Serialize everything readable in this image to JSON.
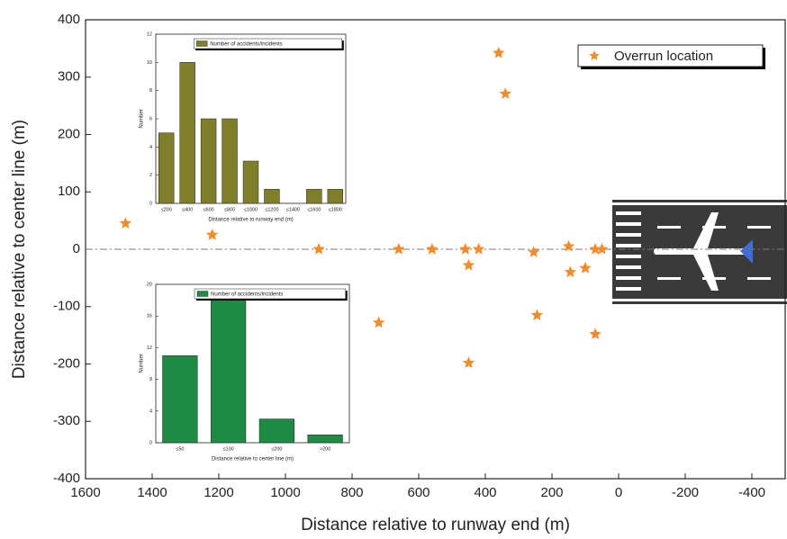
{
  "chart_data": [
    {
      "type": "scatter",
      "xlabel": "Distance relative to runway end (m)",
      "ylabel": "Distance relative to center line (m)",
      "xlim": [
        1600,
        -500
      ],
      "ylim": [
        -400,
        400
      ],
      "xticks": [
        1600,
        1400,
        1200,
        1000,
        800,
        600,
        400,
        200,
        0,
        -200,
        -400
      ],
      "yticks": [
        -400,
        -300,
        -200,
        -100,
        0,
        100,
        200,
        300,
        400
      ],
      "legend": "upper right",
      "series": [
        {
          "name": "Overrun location",
          "color": "#f28c28",
          "x": [
            1480,
            1220,
            900,
            720,
            660,
            560,
            460,
            450,
            450,
            420,
            360,
            340,
            255,
            245,
            150,
            145,
            100,
            70,
            70,
            50
          ],
          "values": [
            45,
            25,
            0,
            -128,
            0,
            0,
            0,
            -28,
            -198,
            0,
            342,
            271,
            -5,
            -115,
            5,
            -40,
            -33,
            -148,
            0,
            0
          ]
        }
      ]
    },
    {
      "type": "bar",
      "xlabel": "Distance relative to runway end (m)",
      "ylabel": "Number",
      "categories": [
        "≤200",
        "≤400",
        "≤600",
        "≤800",
        "≤1000",
        "≤1200",
        "≤1400",
        "≤1600",
        "≤1800"
      ],
      "ylim": [
        0,
        12
      ],
      "yticks": [
        0,
        2,
        4,
        6,
        8,
        10,
        12
      ],
      "series": [
        {
          "name": "Number of accidents/incidents",
          "color": "#7f7f2a",
          "values": [
            5,
            10,
            6,
            6,
            3,
            1,
            0,
            1,
            1
          ]
        }
      ]
    },
    {
      "type": "bar",
      "xlabel": "Distance relative to center line (m)",
      "ylabel": "Number",
      "categories": [
        "≤50",
        "≤100",
        "≤200",
        ">200"
      ],
      "ylim": [
        0,
        20
      ],
      "yticks": [
        0,
        4,
        8,
        12,
        16,
        20
      ],
      "series": [
        {
          "name": "Number of accidents/incidents",
          "color": "#1e8a44",
          "values": [
            11,
            18,
            3,
            1
          ]
        }
      ]
    }
  ]
}
